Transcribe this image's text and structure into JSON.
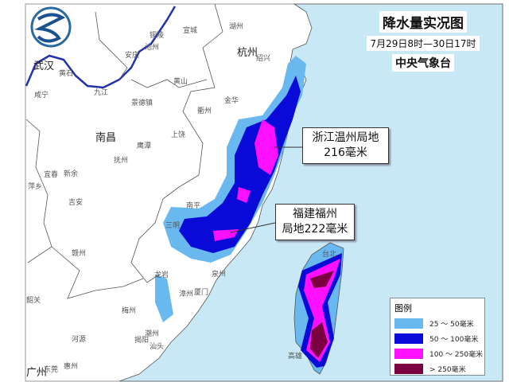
{
  "title": {
    "main": "降水量实况图",
    "period": "7月29日8时—30日17时",
    "source": "中央气象台"
  },
  "callouts": [
    {
      "line1": "浙江温州局地",
      "line2": "216毫米"
    },
    {
      "line1": "福建福州",
      "line2": "局地222毫米"
    }
  ],
  "legend": {
    "title": "图例",
    "items": [
      {
        "label": "25 ～ 50毫米",
        "color": "#6ab8f0"
      },
      {
        "label": "50 ～ 100毫米",
        "color": "#0a0ad8"
      },
      {
        "label": "100 ～ 250毫米",
        "color": "#ff10ff"
      },
      {
        "label": "> 250毫米",
        "color": "#7a0040"
      }
    ]
  },
  "cities_major": [
    "武汉",
    "杭州",
    "南昌",
    "广州"
  ],
  "cities": [
    "黄石",
    "咸宁",
    "九江",
    "安庆",
    "铜陵",
    "池州",
    "宣城",
    "湖州",
    "绍兴",
    "黄山",
    "景德镇",
    "衢州",
    "金华",
    "上饶",
    "鹰潭",
    "抚州",
    "宜春",
    "新余",
    "萍乡",
    "吉安",
    "南平",
    "三明",
    "赣州",
    "龙岩",
    "泉州",
    "漳州",
    "厦门",
    "韶关",
    "梅州",
    "潮州",
    "揭阳",
    "汕头",
    "河源",
    "惠州",
    "东莞",
    "台北",
    "高雄"
  ],
  "colors": {
    "sea": "#c8e8f6",
    "land": "#ffffff",
    "river": "#2233aa"
  },
  "logo": "气象 logo"
}
